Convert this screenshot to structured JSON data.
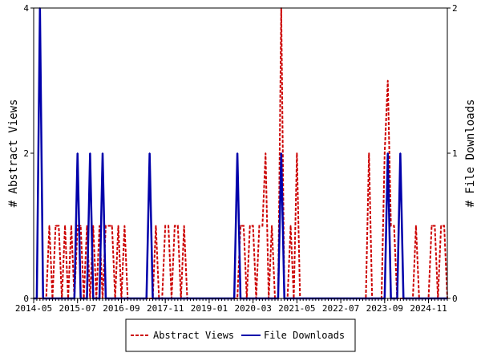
{
  "chart_data": {
    "type": "line",
    "x_ticks": [
      "2014-05",
      "2015-07",
      "2016-09",
      "2017-11",
      "2019-01",
      "2020-03",
      "2021-05",
      "2022-07",
      "2023-09",
      "2024-11"
    ],
    "x_range": [
      "2014-05",
      "2025-05"
    ],
    "left_axis": {
      "label": "# Abstract Views",
      "range": [
        0,
        4
      ],
      "ticks": [
        "0",
        "2",
        "4"
      ]
    },
    "right_axis": {
      "label": "# File Downloads",
      "range": [
        0,
        2
      ],
      "ticks": [
        "0",
        "1",
        "2"
      ]
    },
    "grid": false,
    "legend_position": "bottom-center",
    "series": [
      {
        "name": "Abstract Views",
        "axis": "left",
        "color": "#cc0000",
        "style": "dashed",
        "points": [
          [
            "2014-05",
            0
          ],
          [
            "2014-06",
            0
          ],
          [
            "2014-07",
            0
          ],
          [
            "2014-08",
            0
          ],
          [
            "2014-09",
            0
          ],
          [
            "2014-10",
            1
          ],
          [
            "2014-11",
            0
          ],
          [
            "2014-12",
            1
          ],
          [
            "2015-01",
            1
          ],
          [
            "2015-02",
            0
          ],
          [
            "2015-03",
            1
          ],
          [
            "2015-04",
            0
          ],
          [
            "2015-05",
            1
          ],
          [
            "2015-06",
            0
          ],
          [
            "2015-07",
            1
          ],
          [
            "2015-08",
            1
          ],
          [
            "2015-09",
            0
          ],
          [
            "2015-10",
            1
          ],
          [
            "2015-11",
            0
          ],
          [
            "2015-12",
            1
          ],
          [
            "2016-01",
            0
          ],
          [
            "2016-02",
            1
          ],
          [
            "2016-03",
            0
          ],
          [
            "2016-04",
            1
          ],
          [
            "2016-05",
            1
          ],
          [
            "2016-06",
            1
          ],
          [
            "2016-07",
            0
          ],
          [
            "2016-08",
            1
          ],
          [
            "2016-09",
            0
          ],
          [
            "2016-10",
            1
          ],
          [
            "2016-11",
            0
          ],
          [
            "2016-12",
            0
          ],
          [
            "2017-01",
            0
          ],
          [
            "2017-02",
            0
          ],
          [
            "2017-03",
            0
          ],
          [
            "2017-04",
            0
          ],
          [
            "2017-05",
            0
          ],
          [
            "2017-06",
            0
          ],
          [
            "2017-07",
            0
          ],
          [
            "2017-08",
            1
          ],
          [
            "2017-09",
            0
          ],
          [
            "2017-10",
            0
          ],
          [
            "2017-11",
            1
          ],
          [
            "2017-12",
            1
          ],
          [
            "2018-01",
            0
          ],
          [
            "2018-02",
            1
          ],
          [
            "2018-03",
            1
          ],
          [
            "2018-04",
            0
          ],
          [
            "2018-05",
            1
          ],
          [
            "2018-06",
            0
          ],
          [
            "2018-07",
            0
          ],
          [
            "2018-08",
            0
          ],
          [
            "2018-09",
            0
          ],
          [
            "2018-10",
            0
          ],
          [
            "2018-11",
            0
          ],
          [
            "2018-12",
            0
          ],
          [
            "2019-01",
            0
          ],
          [
            "2019-02",
            0
          ],
          [
            "2019-03",
            0
          ],
          [
            "2019-04",
            0
          ],
          [
            "2019-05",
            0
          ],
          [
            "2019-06",
            0
          ],
          [
            "2019-07",
            0
          ],
          [
            "2019-08",
            0
          ],
          [
            "2019-09",
            0
          ],
          [
            "2019-10",
            0
          ],
          [
            "2019-11",
            1
          ],
          [
            "2019-12",
            1
          ],
          [
            "2020-01",
            0
          ],
          [
            "2020-02",
            1
          ],
          [
            "2020-03",
            1
          ],
          [
            "2020-04",
            0
          ],
          [
            "2020-05",
            1
          ],
          [
            "2020-06",
            1
          ],
          [
            "2020-07",
            2
          ],
          [
            "2020-08",
            0
          ],
          [
            "2020-09",
            1
          ],
          [
            "2020-10",
            0
          ],
          [
            "2020-11",
            0
          ],
          [
            "2020-12",
            4
          ],
          [
            "2021-01",
            0
          ],
          [
            "2021-02",
            0
          ],
          [
            "2021-03",
            1
          ],
          [
            "2021-04",
            0
          ],
          [
            "2021-05",
            2
          ],
          [
            "2021-06",
            0
          ],
          [
            "2021-07",
            0
          ],
          [
            "2021-08",
            0
          ],
          [
            "2021-09",
            0
          ],
          [
            "2021-10",
            0
          ],
          [
            "2021-11",
            0
          ],
          [
            "2021-12",
            0
          ],
          [
            "2022-01",
            0
          ],
          [
            "2022-02",
            0
          ],
          [
            "2022-03",
            0
          ],
          [
            "2022-04",
            0
          ],
          [
            "2022-05",
            0
          ],
          [
            "2022-06",
            0
          ],
          [
            "2022-07",
            0
          ],
          [
            "2022-08",
            0
          ],
          [
            "2022-09",
            0
          ],
          [
            "2022-10",
            0
          ],
          [
            "2022-11",
            0
          ],
          [
            "2022-12",
            0
          ],
          [
            "2023-01",
            0
          ],
          [
            "2023-02",
            0
          ],
          [
            "2023-03",
            0
          ],
          [
            "2023-04",
            2
          ],
          [
            "2023-05",
            0
          ],
          [
            "2023-06",
            0
          ],
          [
            "2023-07",
            0
          ],
          [
            "2023-08",
            0
          ],
          [
            "2023-09",
            2
          ],
          [
            "2023-10",
            3
          ],
          [
            "2023-11",
            1
          ],
          [
            "2023-12",
            1
          ],
          [
            "2024-01",
            0
          ],
          [
            "2024-02",
            0
          ],
          [
            "2024-03",
            0
          ],
          [
            "2024-04",
            0
          ],
          [
            "2024-05",
            0
          ],
          [
            "2024-06",
            0
          ],
          [
            "2024-07",
            1
          ],
          [
            "2024-08",
            0
          ],
          [
            "2024-09",
            0
          ],
          [
            "2024-10",
            0
          ],
          [
            "2024-11",
            0
          ],
          [
            "2024-12",
            1
          ],
          [
            "2025-01",
            1
          ],
          [
            "2025-02",
            0
          ],
          [
            "2025-03",
            1
          ],
          [
            "2025-04",
            1
          ],
          [
            "2025-05",
            0
          ]
        ]
      },
      {
        "name": "File Downloads",
        "axis": "right",
        "color": "#0000aa",
        "style": "solid",
        "points": [
          [
            "2014-05",
            0
          ],
          [
            "2014-06",
            0
          ],
          [
            "2014-07",
            2
          ],
          [
            "2014-08",
            0
          ],
          [
            "2014-09",
            0
          ],
          [
            "2014-10",
            0
          ],
          [
            "2014-11",
            0
          ],
          [
            "2014-12",
            0
          ],
          [
            "2015-01",
            0
          ],
          [
            "2015-02",
            0
          ],
          [
            "2015-03",
            0
          ],
          [
            "2015-04",
            0
          ],
          [
            "2015-05",
            0
          ],
          [
            "2015-06",
            0
          ],
          [
            "2015-07",
            1
          ],
          [
            "2015-08",
            0
          ],
          [
            "2015-09",
            0
          ],
          [
            "2015-10",
            0
          ],
          [
            "2015-11",
            1
          ],
          [
            "2015-12",
            0
          ],
          [
            "2016-01",
            0
          ],
          [
            "2016-02",
            0
          ],
          [
            "2016-03",
            1
          ],
          [
            "2016-04",
            0
          ],
          [
            "2016-05",
            0
          ],
          [
            "2016-06",
            0
          ],
          [
            "2016-07",
            0
          ],
          [
            "2016-08",
            0
          ],
          [
            "2016-09",
            0
          ],
          [
            "2016-10",
            0
          ],
          [
            "2016-11",
            0
          ],
          [
            "2016-12",
            0
          ],
          [
            "2017-01",
            0
          ],
          [
            "2017-02",
            0
          ],
          [
            "2017-03",
            0
          ],
          [
            "2017-04",
            0
          ],
          [
            "2017-05",
            0
          ],
          [
            "2017-06",
            1
          ],
          [
            "2017-07",
            0
          ],
          [
            "2017-08",
            0
          ],
          [
            "2017-09",
            0
          ],
          [
            "2017-10",
            0
          ],
          [
            "2017-11",
            0
          ],
          [
            "2017-12",
            0
          ],
          [
            "2018-01",
            0
          ],
          [
            "2018-02",
            0
          ],
          [
            "2018-03",
            0
          ],
          [
            "2018-04",
            0
          ],
          [
            "2018-05",
            0
          ],
          [
            "2018-06",
            0
          ],
          [
            "2018-07",
            0
          ],
          [
            "2018-08",
            0
          ],
          [
            "2018-09",
            0
          ],
          [
            "2018-10",
            0
          ],
          [
            "2018-11",
            0
          ],
          [
            "2018-12",
            0
          ],
          [
            "2019-01",
            0
          ],
          [
            "2019-02",
            0
          ],
          [
            "2019-03",
            0
          ],
          [
            "2019-04",
            0
          ],
          [
            "2019-05",
            0
          ],
          [
            "2019-06",
            0
          ],
          [
            "2019-07",
            0
          ],
          [
            "2019-08",
            0
          ],
          [
            "2019-09",
            0
          ],
          [
            "2019-10",
            1
          ],
          [
            "2019-11",
            0
          ],
          [
            "2019-12",
            0
          ],
          [
            "2020-01",
            0
          ],
          [
            "2020-02",
            0
          ],
          [
            "2020-03",
            0
          ],
          [
            "2020-04",
            0
          ],
          [
            "2020-05",
            0
          ],
          [
            "2020-06",
            0
          ],
          [
            "2020-07",
            0
          ],
          [
            "2020-08",
            0
          ],
          [
            "2020-09",
            0
          ],
          [
            "2020-10",
            0
          ],
          [
            "2020-11",
            0
          ],
          [
            "2020-12",
            1
          ],
          [
            "2021-01",
            0
          ],
          [
            "2021-02",
            0
          ],
          [
            "2021-03",
            0
          ],
          [
            "2021-04",
            0
          ],
          [
            "2021-05",
            0
          ],
          [
            "2021-06",
            0
          ],
          [
            "2021-07",
            0
          ],
          [
            "2021-08",
            0
          ],
          [
            "2021-09",
            0
          ],
          [
            "2021-10",
            0
          ],
          [
            "2021-11",
            0
          ],
          [
            "2021-12",
            0
          ],
          [
            "2022-01",
            0
          ],
          [
            "2022-02",
            0
          ],
          [
            "2022-03",
            0
          ],
          [
            "2022-04",
            0
          ],
          [
            "2022-05",
            0
          ],
          [
            "2022-06",
            0
          ],
          [
            "2022-07",
            0
          ],
          [
            "2022-08",
            0
          ],
          [
            "2022-09",
            0
          ],
          [
            "2022-10",
            0
          ],
          [
            "2022-11",
            0
          ],
          [
            "2022-12",
            0
          ],
          [
            "2023-01",
            0
          ],
          [
            "2023-02",
            0
          ],
          [
            "2023-03",
            0
          ],
          [
            "2023-04",
            0
          ],
          [
            "2023-05",
            0
          ],
          [
            "2023-06",
            0
          ],
          [
            "2023-07",
            0
          ],
          [
            "2023-08",
            0
          ],
          [
            "2023-09",
            0
          ],
          [
            "2023-10",
            1
          ],
          [
            "2023-11",
            0
          ],
          [
            "2023-12",
            0
          ],
          [
            "2024-01",
            0
          ],
          [
            "2024-02",
            1
          ],
          [
            "2024-03",
            0
          ],
          [
            "2024-04",
            0
          ],
          [
            "2024-05",
            0
          ],
          [
            "2024-06",
            0
          ],
          [
            "2024-07",
            0
          ],
          [
            "2024-08",
            0
          ],
          [
            "2024-09",
            0
          ],
          [
            "2024-10",
            0
          ],
          [
            "2024-11",
            0
          ],
          [
            "2024-12",
            0
          ],
          [
            "2025-01",
            0
          ],
          [
            "2025-02",
            0
          ],
          [
            "2025-03",
            0
          ],
          [
            "2025-04",
            0
          ],
          [
            "2025-05",
            0
          ]
        ]
      }
    ]
  }
}
